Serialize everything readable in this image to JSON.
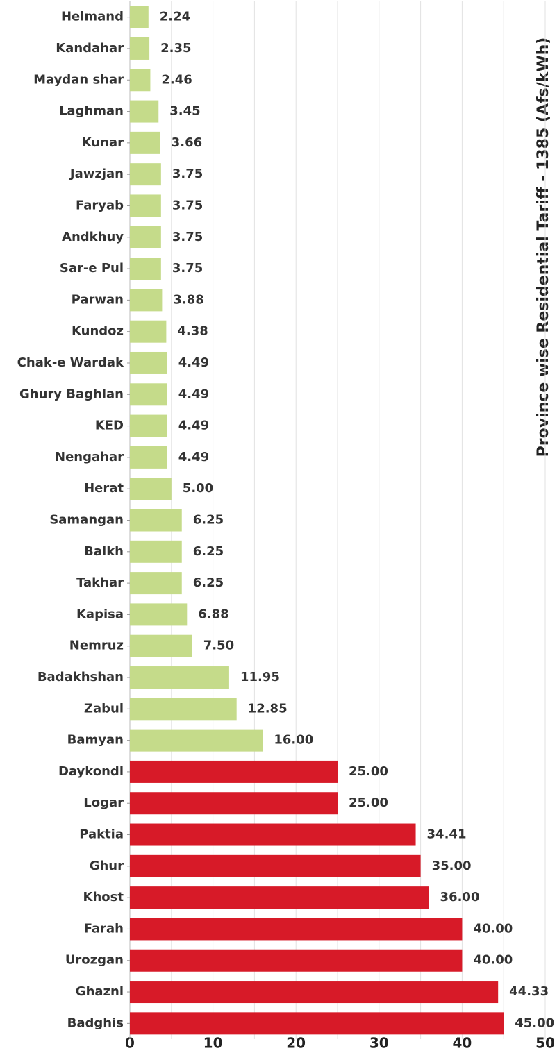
{
  "chart_data": {
    "type": "hbar",
    "title": "Province wise Residential Tariff - 1385 (Afs/kWh)",
    "categories": [
      "Helmand",
      "Kandahar",
      "Maydan shar",
      "Laghman",
      "Kunar",
      "Jawzjan",
      "Faryab",
      "Andkhuy",
      "Sar-e Pul",
      "Parwan",
      "Kundoz",
      "Chak-e Wardak",
      "Ghury Baghlan",
      "KED",
      "Nengahar",
      "Herat",
      "Samangan",
      "Balkh",
      "Takhar",
      "Kapisa",
      "Nemruz",
      "Badakhshan",
      "Zabul",
      "Bamyan",
      "Daykondi",
      "Logar",
      "Paktia",
      "Ghur",
      "Khost",
      "Farah",
      "Urozgan",
      "Ghazni",
      "Badghis"
    ],
    "values": [
      2.24,
      2.35,
      2.46,
      3.45,
      3.66,
      3.75,
      3.75,
      3.75,
      3.75,
      3.88,
      4.38,
      4.49,
      4.49,
      4.49,
      4.49,
      5,
      6.25,
      6.25,
      6.25,
      6.88,
      7.5,
      11.95,
      12.85,
      16,
      25,
      25,
      34.41,
      35,
      36,
      40,
      40,
      44.33,
      45
    ],
    "value_labels": [
      "2.24",
      "2.35",
      "2.46",
      "3.45",
      "3.66",
      "3.75",
      "3.75",
      "3.75",
      "3.75",
      "3.88",
      "4.38",
      "4.49",
      "4.49",
      "4.49",
      "4.49",
      "5.00",
      "6.25",
      "6.25",
      "6.25",
      "6.88",
      "7.50",
      "11.95",
      "12.85",
      "16.00",
      "25.00",
      "25.00",
      "34.41",
      "35.00",
      "36.00",
      "40.00",
      "40.00",
      "44.33",
      "45.00"
    ],
    "colors": [
      "#c5db8a",
      "#c5db8a",
      "#c5db8a",
      "#c5db8a",
      "#c5db8a",
      "#c5db8a",
      "#c5db8a",
      "#c5db8a",
      "#c5db8a",
      "#c5db8a",
      "#c5db8a",
      "#c5db8a",
      "#c5db8a",
      "#c5db8a",
      "#c5db8a",
      "#c5db8a",
      "#c5db8a",
      "#c5db8a",
      "#c5db8a",
      "#c5db8a",
      "#c5db8a",
      "#c5db8a",
      "#c5db8a",
      "#c5db8a",
      "#d71a28",
      "#d71a28",
      "#d71a28",
      "#d71a28",
      "#d71a28",
      "#d71a28",
      "#d71a28",
      "#d71a28",
      "#d71a28"
    ],
    "xlim": [
      0,
      50
    ],
    "xticks": [
      0,
      10,
      20,
      30,
      40,
      50
    ],
    "minor_xticks": [
      5,
      15,
      25,
      35,
      45
    ],
    "grid": true
  }
}
